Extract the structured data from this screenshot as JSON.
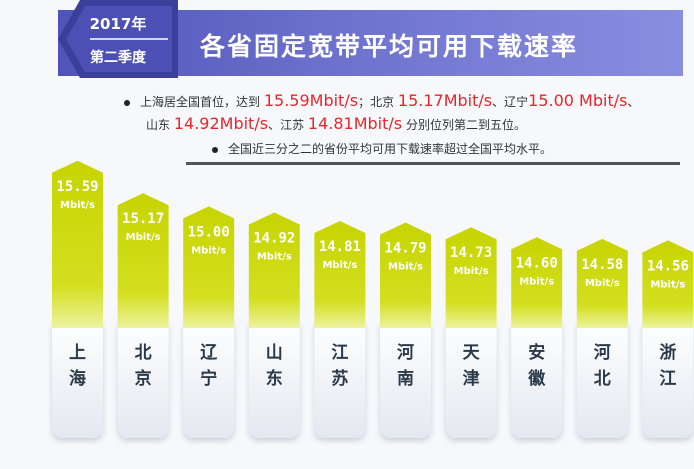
{
  "header": {
    "badge_year": "2017年",
    "badge_quarter": "第二季度",
    "title": "各省固定宽带平均可用下载速率"
  },
  "summary": {
    "line1_a": "上海居全国首位，达到",
    "line1_v1": "15.59Mbit/s",
    "line1_b": "；北京",
    "line1_v2": "15.17Mbit/s",
    "line1_c": "、辽宁",
    "line1_v3": "15.00 Mbit/s",
    "line1_d": "、",
    "line2_a": "山东",
    "line2_v1": "14.92Mbit/s",
    "line2_b": "、江苏",
    "line2_v2": "14.81Mbit/s",
    "line2_c": "分别位列第二到五位。",
    "line3": "全国近三分之二的省份平均可用下载速率超过全国平均水平。"
  },
  "colors": {
    "header": "#5a5fc0",
    "bar": "#c9d600",
    "bar_light": "#e9f07a",
    "value_red": "#e8262a"
  },
  "chart_data": {
    "type": "bar",
    "unit": "Mbit/s",
    "categories": [
      "上海",
      "北京",
      "辽宁",
      "山东",
      "江苏",
      "河南",
      "天津",
      "安徽",
      "河北",
      "浙江"
    ],
    "category_chars": [
      [
        "上",
        "海"
      ],
      [
        "北",
        "京"
      ],
      [
        "辽",
        "宁"
      ],
      [
        "山",
        "东"
      ],
      [
        "江",
        "苏"
      ],
      [
        "河",
        "南"
      ],
      [
        "天",
        "津"
      ],
      [
        "安",
        "徽"
      ],
      [
        "河",
        "北"
      ],
      [
        "浙",
        "江"
      ]
    ],
    "values": [
      15.59,
      15.17,
      15.0,
      14.92,
      14.81,
      14.79,
      14.73,
      14.6,
      14.58,
      14.56
    ],
    "value_labels": [
      "15.59",
      "15.17",
      "15.00",
      "14.92",
      "14.81",
      "14.79",
      "14.73",
      "14.60",
      "14.58",
      "14.56"
    ]
  }
}
